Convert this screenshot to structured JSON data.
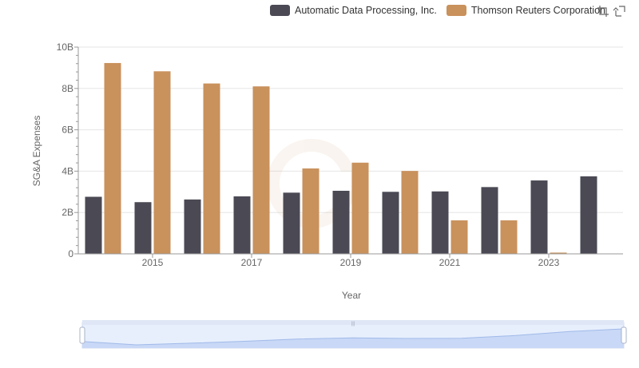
{
  "chart_data": {
    "type": "bar",
    "xlabel": "Year",
    "ylabel": "SG&A Expenses",
    "ylim": [
      0,
      10000000000
    ],
    "yticks": [
      0,
      2000000000,
      4000000000,
      6000000000,
      8000000000,
      10000000000
    ],
    "ytick_labels": [
      "0",
      "2B",
      "4B",
      "6B",
      "8B",
      "10B"
    ],
    "categories": [
      "2014",
      "2015",
      "2016",
      "2017",
      "2018",
      "2019",
      "2020",
      "2021",
      "2022",
      "2023",
      "2024"
    ],
    "xtick_labels": [
      "2015",
      "2017",
      "2019",
      "2021",
      "2023"
    ],
    "legend_position": "top",
    "grid": true,
    "series": [
      {
        "name": "Automatic Data Processing, Inc.",
        "color": "#4a4954",
        "values": [
          2760000000,
          2500000000,
          2630000000,
          2780000000,
          2960000000,
          3050000000,
          3000000000,
          3020000000,
          3230000000,
          3550000000,
          3750000000
        ]
      },
      {
        "name": "Thomson Reuters Corporation",
        "color": "#c9915c",
        "values": [
          9230000000,
          8830000000,
          8240000000,
          8100000000,
          4130000000,
          4410000000,
          4010000000,
          1620000000,
          1620000000,
          60000000,
          null
        ]
      }
    ],
    "data_zoom": {
      "start": 0,
      "end": 100
    }
  }
}
